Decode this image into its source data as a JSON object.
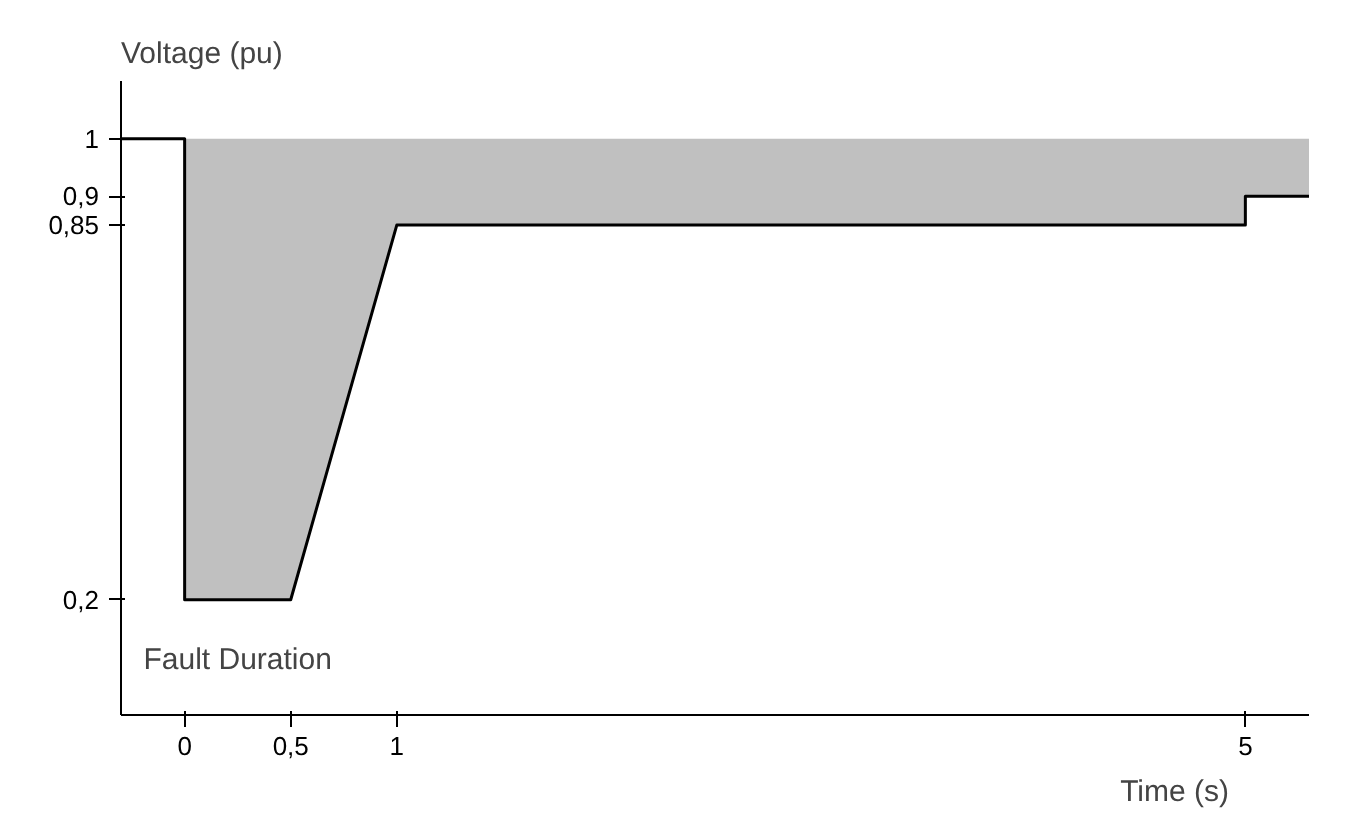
{
  "chart_data": {
    "type": "line",
    "xlabel": "Time (s)",
    "ylabel": "Voltage (pu)",
    "x": [
      -0.3,
      0,
      0,
      0.5,
      1,
      5,
      5,
      5.3
    ],
    "series": [
      {
        "color": "#000000",
        "values": [
          1,
          1,
          0.2,
          0.2,
          0.85,
          0.85,
          0.9,
          0.9
        ],
        "lower": [
          null,
          null,
          0.2,
          0.2,
          0.85,
          0.85,
          0.9,
          0.9
        ],
        "upper": [
          null,
          null,
          1,
          1,
          1,
          1,
          1,
          1
        ]
      }
    ],
    "xlim": [
      -0.3,
      5.3
    ],
    "ylim": [
      0,
      1.1
    ],
    "xticks": [
      0,
      {
        "value": 0.5,
        "label": "0,5"
      },
      1,
      5
    ],
    "yticks": [
      {
        "value": 0.2,
        "label": "0,2"
      },
      {
        "value": 0.85,
        "label": "0,85"
      },
      {
        "value": 0.9,
        "label": "0,9"
      },
      1
    ],
    "annotations": [
      {
        "text": "Fault Duration",
        "x": 0.25,
        "y": 0.2
      }
    ],
    "grid": false,
    "marker": "none",
    "line_style": "solid"
  }
}
